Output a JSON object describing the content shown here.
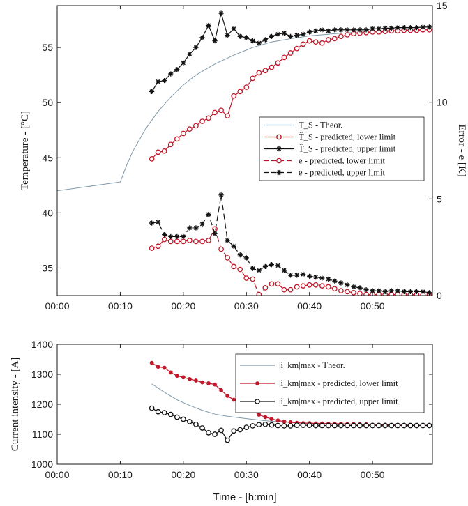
{
  "chart_data": [
    {
      "type": "line",
      "xlabel": "",
      "ylabel": "Temperature - [°C]",
      "ylabel_right": "Error - e [K]",
      "x_ticks": [
        "00:00",
        "00:10",
        "00:20",
        "00:30",
        "00:40",
        "00:50"
      ],
      "xlim": [
        0,
        59.5
      ],
      "ylim": [
        32.5,
        58.8
      ],
      "ylim_right": [
        0,
        15
      ],
      "y_ticks": [
        35,
        40,
        45,
        50,
        55
      ],
      "y_ticks_right": [
        0,
        5,
        10,
        15
      ],
      "legend_position": "right",
      "colors": {
        "theor": "#7f98a8",
        "lower": "#c0182a",
        "upper": "#111111"
      },
      "series": [
        {
          "name": "T_S - Theor.",
          "axis": "left",
          "style": "solid",
          "marker": "none",
          "color": "#7f98a8",
          "x": [
            0,
            10,
            11,
            12,
            14,
            16,
            18,
            20,
            22,
            25,
            28,
            31,
            34,
            37,
            40,
            44,
            48,
            52,
            56,
            59
          ],
          "y": [
            42.0,
            42.8,
            44.3,
            45.6,
            47.6,
            49.2,
            50.5,
            51.6,
            52.5,
            53.5,
            54.3,
            55.0,
            55.5,
            55.8,
            56.05,
            56.25,
            56.4,
            56.5,
            56.6,
            56.65
          ]
        },
        {
          "name": "T̂_S - predicted, lower limit",
          "axis": "left",
          "style": "solid",
          "marker": "circle",
          "color": "#c0182a",
          "x": [
            15,
            16,
            17,
            18,
            19,
            20,
            21,
            22,
            23,
            24,
            25,
            26,
            27,
            28,
            29,
            30,
            31,
            32,
            33,
            34,
            35,
            36,
            37,
            38,
            39,
            40,
            41,
            42,
            43,
            44,
            45,
            46,
            47,
            48,
            49,
            50,
            51,
            52,
            53,
            54,
            55,
            56,
            57,
            58,
            59
          ],
          "y": [
            44.9,
            45.5,
            45.6,
            46.2,
            46.7,
            47.2,
            47.6,
            47.9,
            48.3,
            48.6,
            49.1,
            49.3,
            48.8,
            50.6,
            51.0,
            51.4,
            52.2,
            52.7,
            52.9,
            53.2,
            53.6,
            54.1,
            54.5,
            54.9,
            55.3,
            55.6,
            55.5,
            55.4,
            55.7,
            55.8,
            56.0,
            56.15,
            56.25,
            56.3,
            56.35,
            56.4,
            56.4,
            56.45,
            56.5,
            56.5,
            56.55,
            56.55,
            56.55,
            56.6,
            56.6
          ]
        },
        {
          "name": "T̂_S - predicted, upper limit",
          "axis": "left",
          "style": "solid",
          "marker": "star",
          "color": "#111111",
          "x": [
            15,
            16,
            17,
            18,
            19,
            20,
            21,
            22,
            23,
            24,
            25,
            26,
            27,
            28,
            29,
            30,
            31,
            32,
            33,
            34,
            35,
            36,
            37,
            38,
            39,
            40,
            41,
            42,
            43,
            44,
            45,
            46,
            47,
            48,
            49,
            50,
            51,
            52,
            53,
            54,
            55,
            56,
            57,
            58,
            59
          ],
          "y": [
            51.0,
            51.9,
            52.0,
            52.6,
            53.0,
            53.6,
            54.4,
            55.0,
            55.9,
            57.0,
            55.6,
            58.1,
            56.1,
            56.7,
            56.0,
            55.9,
            55.6,
            55.4,
            55.7,
            56.0,
            56.2,
            56.3,
            56.0,
            56.1,
            56.2,
            56.4,
            56.5,
            56.6,
            56.5,
            56.6,
            56.6,
            56.6,
            56.6,
            56.6,
            56.6,
            56.7,
            56.7,
            56.75,
            56.75,
            56.8,
            56.8,
            56.8,
            56.8,
            56.85,
            56.85
          ]
        },
        {
          "name": "e - predicted, lower limit",
          "axis": "right",
          "style": "dashed",
          "marker": "circle",
          "color": "#c0182a",
          "x": [
            15,
            16,
            17,
            18,
            19,
            20,
            21,
            22,
            23,
            24,
            25,
            26,
            27,
            28,
            29,
            30,
            31,
            32,
            33,
            34,
            35,
            36,
            37,
            38,
            39,
            40,
            41,
            42,
            43,
            44,
            45,
            46,
            47,
            48,
            49,
            50,
            51,
            52,
            53,
            54,
            55,
            56,
            57,
            58,
            59
          ],
          "y": [
            2.45,
            2.55,
            2.9,
            2.8,
            2.8,
            2.8,
            2.85,
            2.8,
            2.8,
            2.85,
            3.45,
            2.4,
            1.95,
            1.5,
            1.35,
            0.9,
            0.85,
            0.05,
            0.4,
            0.6,
            0.6,
            0.3,
            0.3,
            0.45,
            0.5,
            0.55,
            0.55,
            0.5,
            0.45,
            0.35,
            0.25,
            0.2,
            0.15,
            0.1,
            0.05,
            0.05,
            0.05,
            0.05,
            0.05,
            0.05,
            0.05,
            0.05,
            0.05,
            0.05,
            0.05
          ]
        },
        {
          "name": "e - predicted, upper limit",
          "axis": "right",
          "style": "dashed",
          "marker": "star",
          "color": "#111111",
          "x": [
            15,
            16,
            17,
            18,
            19,
            20,
            21,
            22,
            23,
            24,
            25,
            26,
            27,
            28,
            29,
            30,
            31,
            32,
            33,
            34,
            35,
            36,
            37,
            38,
            39,
            40,
            41,
            42,
            43,
            44,
            45,
            46,
            47,
            48,
            49,
            50,
            51,
            52,
            53,
            54,
            55,
            56,
            57,
            58,
            59
          ],
          "y": [
            3.75,
            3.8,
            3.15,
            3.05,
            3.05,
            3.05,
            3.5,
            3.5,
            3.7,
            4.2,
            3.2,
            5.2,
            2.85,
            2.55,
            2.1,
            1.95,
            1.4,
            1.3,
            1.5,
            1.6,
            1.55,
            1.3,
            1.05,
            1.05,
            1.1,
            1.0,
            0.95,
            0.9,
            0.85,
            0.75,
            0.65,
            0.55,
            0.45,
            0.4,
            0.3,
            0.25,
            0.25,
            0.2,
            0.25,
            0.25,
            0.2,
            0.2,
            0.2,
            0.2,
            0.15
          ]
        }
      ]
    },
    {
      "type": "line",
      "xlabel": "Time - [h:min]",
      "ylabel": "Current intensity - [A]",
      "x_ticks": [
        "00:00",
        "00:10",
        "00:20",
        "00:30",
        "00:40",
        "00:50"
      ],
      "xlim": [
        0,
        59.5
      ],
      "ylim": [
        1000,
        1400
      ],
      "y_ticks": [
        1000,
        1100,
        1200,
        1300,
        1400
      ],
      "legend_position": "top-right",
      "colors": {
        "theor": "#7f98a8",
        "lower": "#c0182a",
        "upper": "#111111"
      },
      "series": [
        {
          "name": "|i_km|max - Theor.",
          "style": "solid",
          "marker": "none",
          "color": "#7f98a8",
          "x": [
            15,
            17,
            19,
            21,
            23,
            25,
            27,
            30,
            33,
            36,
            40,
            44,
            48,
            52,
            56,
            59
          ],
          "y": [
            1268,
            1240,
            1215,
            1196,
            1180,
            1167,
            1160,
            1152,
            1145,
            1140,
            1136,
            1133,
            1131,
            1130,
            1129,
            1129
          ]
        },
        {
          "name": "|î_km|max - predicted, lower limit",
          "style": "solid",
          "marker": "dot",
          "color": "#c0182a",
          "x": [
            15,
            16,
            17,
            18,
            19,
            20,
            21,
            22,
            23,
            24,
            25,
            26,
            27,
            28,
            29,
            30,
            31,
            32,
            33,
            34,
            35,
            36,
            37,
            38,
            39,
            40,
            41,
            42,
            43,
            44,
            45,
            46,
            47,
            48,
            49,
            50,
            51,
            52,
            53,
            54,
            55,
            56,
            57,
            58,
            59
          ],
          "y": [
            1338,
            1325,
            1322,
            1306,
            1295,
            1290,
            1284,
            1279,
            1273,
            1270,
            1266,
            1247,
            1228,
            1215,
            1207,
            1195,
            1180,
            1165,
            1157,
            1151,
            1146,
            1142,
            1140,
            1138,
            1137,
            1137,
            1136,
            1136,
            1135,
            1135,
            1135,
            1134,
            1134,
            1133,
            1133,
            1132,
            1132,
            1132,
            1131,
            1131,
            1131,
            1130,
            1130,
            1130,
            1130
          ]
        },
        {
          "name": "|î_km|max - predicted, upper limit",
          "style": "solid",
          "marker": "circle",
          "color": "#111111",
          "x": [
            15,
            16,
            17,
            18,
            19,
            20,
            21,
            22,
            23,
            24,
            25,
            26,
            27,
            28,
            29,
            30,
            31,
            32,
            33,
            34,
            35,
            36,
            37,
            38,
            39,
            40,
            41,
            42,
            43,
            44,
            45,
            46,
            47,
            48,
            49,
            50,
            51,
            52,
            53,
            54,
            55,
            56,
            57,
            58,
            59
          ],
          "y": [
            1187,
            1175,
            1172,
            1166,
            1157,
            1150,
            1142,
            1133,
            1121,
            1105,
            1100,
            1113,
            1080,
            1111,
            1115,
            1123,
            1128,
            1132,
            1133,
            1131,
            1129,
            1128,
            1128,
            1130,
            1130,
            1130,
            1129,
            1129,
            1129,
            1129,
            1129,
            1129,
            1129,
            1129,
            1129,
            1129,
            1129,
            1129,
            1129,
            1129,
            1129,
            1129,
            1129,
            1129,
            1129
          ]
        }
      ]
    }
  ]
}
